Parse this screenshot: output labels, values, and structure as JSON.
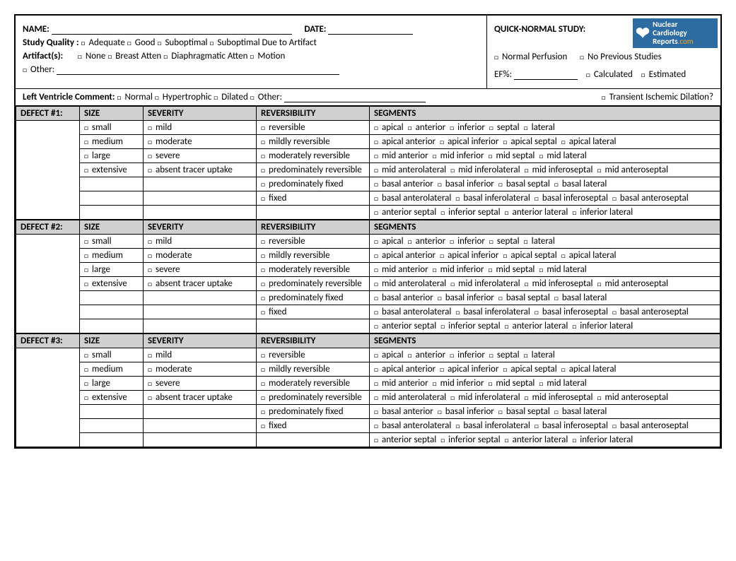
{
  "header": {
    "name_label": "NAME:",
    "date_label": "DATE:",
    "study_quality_label": "Study Quality :",
    "study_quality_options": [
      "Adequate",
      "Good",
      "Suboptimal",
      "Suboptimal Due to Artifact"
    ],
    "artifacts_label": "Artifact(s):",
    "artifact_options": [
      "None",
      "Breast Atten",
      "Diaphragmatic Atten",
      "Motion"
    ],
    "other_label": "Other:"
  },
  "quick_normal": {
    "title": "QUICK-NORMAL STUDY:",
    "normal_perfusion": "Normal Perfusion",
    "no_previous": "No Previous Studies",
    "ef_label": "EF%:",
    "calculated": "Calculated",
    "estimated": "Estimated"
  },
  "logo": {
    "line1": "Nuclear",
    "line2": "Cardiology",
    "line3": "Reports",
    "suffix": ".com"
  },
  "lv_comment": {
    "label": "Left Ventricle Comment:",
    "options": [
      "Normal",
      "Hypertrophic",
      "Dilated",
      "Other:"
    ],
    "tid": "Transient Ischemic Dilation?"
  },
  "columns": {
    "size": "SIZE",
    "severity": "SEVERITY",
    "reversibility": "REVERSIBILITY",
    "segments": "SEGMENTS"
  },
  "defect_labels": [
    "DEFECT #1:",
    "DEFECT #2:",
    "DEFECT #3:"
  ],
  "size_options": [
    "small",
    "medium",
    "large",
    "extensive"
  ],
  "severity_options": [
    "mild",
    "moderate",
    "severe",
    "absent tracer uptake"
  ],
  "reversibility_options": [
    "reversible",
    "mildly reversible",
    "moderately reversible",
    "predominately reversible",
    "predominately fixed",
    "fixed"
  ],
  "segment_rows": [
    [
      "apical",
      "anterior",
      "inferior",
      "septal",
      "lateral"
    ],
    [
      "apical anterior",
      "apical inferior",
      "apical septal",
      "apical lateral"
    ],
    [
      "mid anterior",
      "mid inferior",
      "mid septal",
      "mid lateral"
    ],
    [
      "mid anterolateral",
      "mid inferolateral",
      "mid inferoseptal",
      "mid anteroseptal"
    ],
    [
      "basal anterior",
      "basal inferior",
      "basal septal",
      "basal lateral"
    ],
    [
      "basal anterolateral",
      "basal inferolateral",
      "basal inferoseptal",
      "basal anteroseptal"
    ],
    [
      "anterior septal",
      "inferior septal",
      "anterior lateral",
      "inferior lateral"
    ]
  ],
  "checkbox_glyph": "□",
  "colors": {
    "header_bg": "#d0d0d0",
    "logo_bg": "#2d6ca2",
    "logo_accent": "#f5a623"
  }
}
